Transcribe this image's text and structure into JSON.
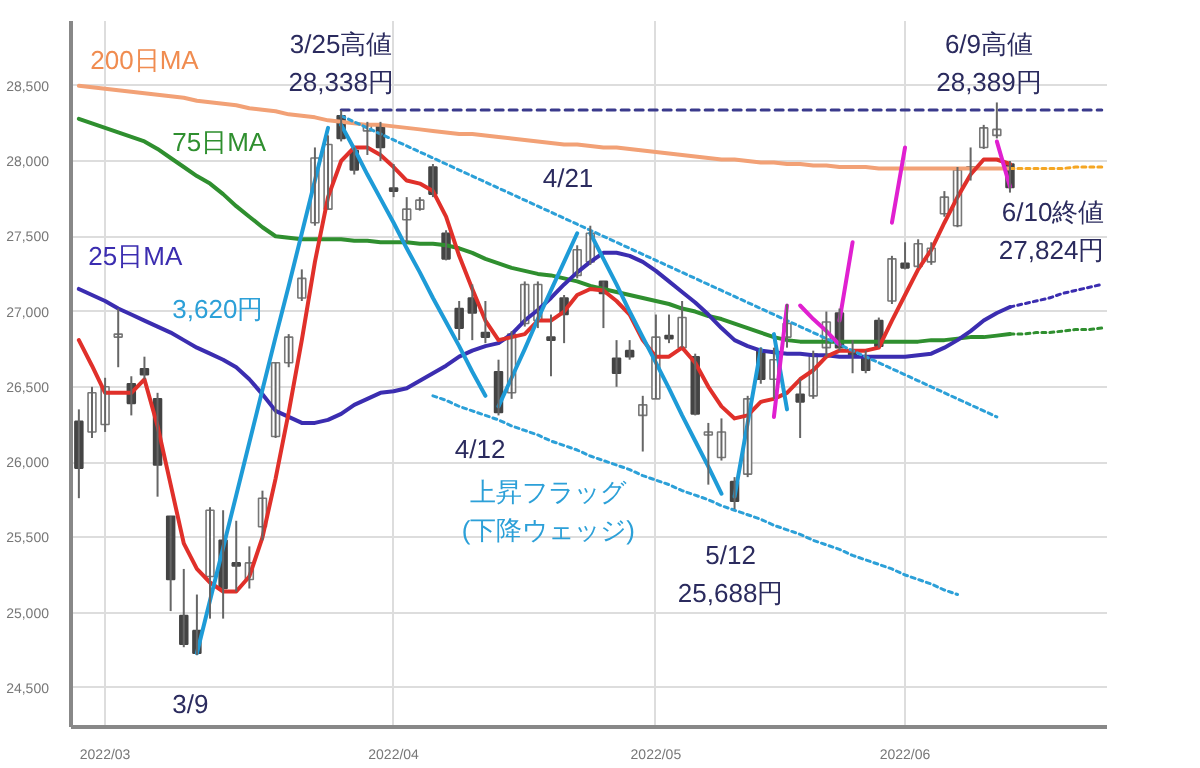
{
  "chart_data": {
    "type": "candlestick",
    "categories": [
      null,
      null,
      "2022/03",
      null,
      null,
      null,
      null,
      null,
      null,
      null,
      null,
      null,
      null,
      null,
      null,
      null,
      null,
      null,
      null,
      null,
      null,
      null,
      null,
      null,
      "2022/04",
      null,
      null,
      null,
      null,
      null,
      null,
      null,
      null,
      null,
      null,
      null,
      null,
      null,
      null,
      null,
      null,
      null,
      null,
      null,
      "2022/05",
      null,
      null,
      null,
      null,
      null,
      null,
      null,
      null,
      null,
      null,
      null,
      null,
      null,
      null,
      null,
      null,
      null,
      null,
      "2022/06",
      null,
      null,
      null,
      null,
      null,
      null,
      null,
      null,
      null,
      null,
      null,
      null,
      null,
      null,
      null
    ],
    "ohlc": [
      [
        26270,
        26350,
        25760,
        25960
      ],
      [
        26200,
        26500,
        26160,
        26460
      ],
      [
        26250,
        26560,
        26200,
        26500
      ],
      [
        26830,
        27020,
        26630,
        26850
      ],
      [
        26520,
        26570,
        26310,
        26390
      ],
      [
        26620,
        26700,
        26550,
        26580
      ],
      [
        26420,
        26460,
        25770,
        25980
      ],
      [
        25640,
        25640,
        25010,
        25220
      ],
      [
        24980,
        25290,
        24770,
        24790
      ],
      [
        24880,
        25120,
        24718,
        24730
      ],
      [
        25240,
        25700,
        24960,
        25680
      ],
      [
        25480,
        25680,
        24960,
        25160
      ],
      [
        25330,
        25610,
        25140,
        25310
      ],
      [
        25220,
        25440,
        25160,
        25330
      ],
      [
        25570,
        25810,
        25480,
        25760
      ],
      [
        26170,
        26660,
        26160,
        26660
      ],
      [
        26660,
        26850,
        26630,
        26830
      ],
      [
        27090,
        27280,
        27070,
        27220
      ],
      [
        27590,
        28090,
        27570,
        28020
      ],
      [
        27680,
        28170,
        27680,
        28110
      ],
      [
        28300,
        28338,
        28130,
        28150
      ],
      [
        28070,
        28090,
        27910,
        27940
      ],
      [
        28200,
        28260,
        28040,
        28240
      ],
      [
        28240,
        28260,
        28000,
        28090
      ],
      [
        27820,
        27980,
        27760,
        27800
      ],
      [
        27610,
        27760,
        27460,
        27680
      ],
      [
        27680,
        27760,
        27670,
        27740
      ],
      [
        27960,
        27980,
        27760,
        27780
      ],
      [
        27520,
        27540,
        27340,
        27350
      ],
      [
        27020,
        27070,
        26810,
        26890
      ],
      [
        27090,
        27180,
        26810,
        26990
      ],
      [
        26860,
        27070,
        26790,
        26830
      ],
      [
        26600,
        26680,
        26310,
        26330
      ],
      [
        26460,
        26870,
        26420,
        26850
      ],
      [
        26920,
        27200,
        26900,
        27180
      ],
      [
        26940,
        27200,
        26890,
        27180
      ],
      [
        26830,
        26980,
        26570,
        26810
      ],
      [
        27090,
        27110,
        26790,
        26980
      ],
      [
        27240,
        27440,
        27220,
        27410
      ],
      [
        27330,
        27570,
        27310,
        27520
      ],
      [
        27200,
        27200,
        26890,
        27120
      ],
      [
        26690,
        26810,
        26500,
        26590
      ],
      [
        26740,
        26810,
        26680,
        26700
      ],
      [
        26310,
        26440,
        26070,
        26380
      ],
      [
        26420,
        26980,
        26420,
        26830
      ],
      [
        26840,
        26980,
        26790,
        26820
      ],
      [
        26760,
        27070,
        26760,
        26960
      ],
      [
        26700,
        26720,
        26310,
        26320
      ],
      [
        26180,
        26260,
        25850,
        26200
      ],
      [
        26030,
        26290,
        26010,
        26200
      ],
      [
        25870,
        25900,
        25688,
        25740
      ],
      [
        25920,
        26440,
        25900,
        26420
      ],
      [
        26740,
        26760,
        26520,
        26550
      ],
      [
        26550,
        26760,
        26420,
        26680
      ],
      [
        26830,
        27050,
        26760,
        26920
      ],
      [
        26450,
        26550,
        26160,
        26400
      ],
      [
        26440,
        26740,
        26420,
        26720
      ],
      [
        26760,
        27000,
        26700,
        26930
      ],
      [
        26990,
        27020,
        26740,
        26760
      ],
      [
        26730,
        26810,
        26590,
        26700
      ],
      [
        26690,
        26740,
        26590,
        26610
      ],
      [
        26940,
        26960,
        26760,
        26770
      ],
      [
        27070,
        27370,
        27050,
        27350
      ],
      [
        27320,
        27460,
        27280,
        27290
      ],
      [
        27300,
        27480,
        27290,
        27450
      ],
      [
        27330,
        27460,
        27310,
        27420
      ],
      [
        27650,
        27800,
        27630,
        27760
      ],
      [
        27570,
        27960,
        27560,
        27940
      ],
      [
        27960,
        28090,
        27870,
        27950
      ],
      [
        28090,
        28240,
        28080,
        28220
      ],
      [
        28170,
        28389,
        28150,
        28210
      ],
      [
        27980,
        28000,
        27790,
        27824
      ],
      null,
      null,
      null,
      null,
      null,
      null,
      null
    ],
    "ylim": [
      24240,
      28930
    ],
    "yticks": [
      {
        "value": 24500,
        "label": "24,500"
      },
      {
        "value": 25000,
        "label": "25,000"
      },
      {
        "value": 25500,
        "label": "25,500"
      },
      {
        "value": 26000,
        "label": "26,000"
      },
      {
        "value": 26500,
        "label": "26,500"
      },
      {
        "value": 27000,
        "label": "27,000"
      },
      {
        "value": 27500,
        "label": "27,500"
      },
      {
        "value": 28000,
        "label": "28,000"
      },
      {
        "value": 28500,
        "label": "28,500"
      }
    ],
    "grid": true,
    "series": [
      {
        "type": "line",
        "color": "#f2a176",
        "values": [
          28500,
          28490,
          28480,
          28470,
          28460,
          28450,
          28440,
          28430,
          28420,
          28400,
          28390,
          28380,
          28370,
          28350,
          28340,
          28330,
          28310,
          28300,
          28290,
          28270,
          28260,
          28250,
          28240,
          28240,
          28230,
          28220,
          28210,
          28200,
          28190,
          28180,
          28180,
          28170,
          28160,
          28150,
          28140,
          28130,
          28120,
          28110,
          28110,
          28100,
          28090,
          28090,
          28080,
          28070,
          28060,
          28050,
          28040,
          28030,
          28020,
          28010,
          28010,
          28000,
          27990,
          27990,
          27980,
          27980,
          27970,
          27970,
          27960,
          27960,
          27960,
          27950,
          27950,
          27950,
          27950,
          27950,
          27950,
          27950,
          27950,
          27950,
          27950,
          27950,
          null,
          null,
          null,
          null,
          null,
          null,
          null
        ]
      },
      {
        "type": "line",
        "color": "#2f8f2f",
        "values": [
          28280,
          28250,
          28220,
          28190,
          28160,
          28130,
          28080,
          28020,
          27960,
          27900,
          27850,
          27780,
          27700,
          27630,
          27560,
          27500,
          27490,
          27480,
          27480,
          27480,
          27480,
          27470,
          27470,
          27460,
          27460,
          27460,
          27450,
          27450,
          27440,
          27420,
          27390,
          27350,
          27320,
          27290,
          27270,
          27250,
          27240,
          27220,
          27200,
          27170,
          27150,
          27130,
          27110,
          27090,
          27070,
          27050,
          27020,
          27000,
          26970,
          26950,
          26920,
          26890,
          26860,
          26830,
          26810,
          26800,
          26800,
          26800,
          26800,
          26800,
          26800,
          26800,
          26800,
          26800,
          26800,
          26810,
          26810,
          26820,
          26830,
          26830,
          26840,
          26850,
          null,
          null,
          null,
          null,
          null,
          null,
          null
        ]
      },
      {
        "type": "line",
        "color": "#3b2db0",
        "values": [
          27150,
          27110,
          27070,
          27020,
          26980,
          26940,
          26900,
          26860,
          26810,
          26760,
          26720,
          26680,
          26630,
          26550,
          26450,
          26340,
          26300,
          26260,
          26260,
          26280,
          26320,
          26380,
          26420,
          26460,
          26470,
          26490,
          26540,
          26590,
          26640,
          26700,
          26740,
          26770,
          26790,
          26850,
          26940,
          27010,
          27090,
          27180,
          27260,
          27330,
          27390,
          27390,
          27370,
          27330,
          27270,
          27200,
          27130,
          27060,
          26980,
          26890,
          26810,
          26770,
          26740,
          26730,
          26720,
          26720,
          26710,
          26710,
          26700,
          26700,
          26700,
          26700,
          26700,
          26700,
          26710,
          26720,
          26760,
          26810,
          26870,
          26940,
          26990,
          27030,
          null,
          null,
          null,
          null,
          null,
          null,
          null
        ]
      },
      {
        "type": "line",
        "color": "#e0302a",
        "values": [
          26810,
          26640,
          26460,
          26460,
          26460,
          26550,
          26240,
          25850,
          25460,
          25290,
          25200,
          25140,
          25140,
          25240,
          25500,
          25890,
          26330,
          26810,
          27330,
          27760,
          28000,
          28090,
          28090,
          28040,
          27960,
          27870,
          27850,
          27800,
          27630,
          27370,
          27150,
          26940,
          26810,
          26830,
          26850,
          26940,
          26940,
          27000,
          27110,
          27150,
          27140,
          27070,
          26980,
          26810,
          26700,
          26700,
          26760,
          26660,
          26500,
          26370,
          26290,
          26310,
          26400,
          26420,
          26460,
          26550,
          26610,
          26700,
          26740,
          26740,
          26740,
          26760,
          26940,
          27110,
          27280,
          27410,
          27590,
          27760,
          27910,
          28010,
          28010,
          27980,
          null,
          null,
          null,
          null,
          null,
          null,
          null
        ]
      },
      {
        "type": "line",
        "color": "#f5a623",
        "line_style": "dotted",
        "values": [
          null,
          null,
          null,
          null,
          null,
          null,
          null,
          null,
          null,
          null,
          null,
          null,
          null,
          null,
          null,
          null,
          null,
          null,
          null,
          null,
          null,
          null,
          null,
          null,
          null,
          null,
          null,
          null,
          null,
          null,
          null,
          null,
          null,
          null,
          null,
          null,
          null,
          null,
          null,
          null,
          null,
          null,
          null,
          null,
          null,
          null,
          null,
          null,
          null,
          null,
          null,
          null,
          null,
          null,
          null,
          null,
          null,
          null,
          null,
          null,
          null,
          null,
          null,
          null,
          null,
          null,
          null,
          null,
          null,
          null,
          null,
          27950,
          27950,
          27950,
          27950,
          27950,
          27960,
          27960,
          27960
        ]
      },
      {
        "type": "line",
        "color": "#3b2db0",
        "line_style": "dotted",
        "values": [
          null,
          null,
          null,
          null,
          null,
          null,
          null,
          null,
          null,
          null,
          null,
          null,
          null,
          null,
          null,
          null,
          null,
          null,
          null,
          null,
          null,
          null,
          null,
          null,
          null,
          null,
          null,
          null,
          null,
          null,
          null,
          null,
          null,
          null,
          null,
          null,
          null,
          null,
          null,
          null,
          null,
          null,
          null,
          null,
          null,
          null,
          null,
          null,
          null,
          null,
          null,
          null,
          null,
          null,
          null,
          null,
          null,
          null,
          null,
          null,
          null,
          null,
          null,
          null,
          null,
          null,
          null,
          null,
          null,
          null,
          null,
          27030,
          27050,
          27070,
          27090,
          27120,
          27140,
          27160,
          27180
        ]
      },
      {
        "type": "line",
        "color": "#2f8f2f",
        "line_style": "dotted",
        "values": [
          null,
          null,
          null,
          null,
          null,
          null,
          null,
          null,
          null,
          null,
          null,
          null,
          null,
          null,
          null,
          null,
          null,
          null,
          null,
          null,
          null,
          null,
          null,
          null,
          null,
          null,
          null,
          null,
          null,
          null,
          null,
          null,
          null,
          null,
          null,
          null,
          null,
          null,
          null,
          null,
          null,
          null,
          null,
          null,
          null,
          null,
          null,
          null,
          null,
          null,
          null,
          null,
          null,
          null,
          null,
          null,
          null,
          null,
          null,
          null,
          null,
          null,
          null,
          null,
          null,
          null,
          null,
          null,
          null,
          null,
          null,
          26850,
          26850,
          26860,
          26860,
          26870,
          26880,
          26880,
          26890
        ]
      },
      {
        "type": "line",
        "color": "#3a3a8c",
        "line_style": "dashed",
        "values": [
          null,
          null,
          null,
          null,
          null,
          null,
          null,
          null,
          null,
          null,
          null,
          null,
          null,
          null,
          null,
          null,
          null,
          null,
          null,
          null,
          28338,
          28338,
          28338,
          28338,
          28338,
          28338,
          28338,
          28338,
          28338,
          28338,
          28338,
          28338,
          28338,
          28338,
          28338,
          28338,
          28338,
          28338,
          28338,
          28338,
          28338,
          28338,
          28338,
          28338,
          28338,
          28338,
          28338,
          28338,
          28338,
          28338,
          28338,
          28338,
          28338,
          28338,
          28338,
          28338,
          28338,
          28338,
          28338,
          28338,
          28338,
          28338,
          28338,
          28338,
          28338,
          28338,
          28338,
          28338,
          28338,
          28338,
          28338,
          28338,
          28338,
          28338,
          28338,
          28338,
          28338,
          28338,
          28338
        ]
      },
      {
        "type": "line",
        "color": "#2ca0d8",
        "line_style": "dotted",
        "values": [
          null,
          null,
          null,
          null,
          null,
          null,
          null,
          null,
          null,
          null,
          null,
          null,
          null,
          null,
          null,
          null,
          null,
          null,
          null,
          null,
          28300,
          28260,
          28220,
          28180,
          28140,
          28100,
          28060,
          28020,
          27980,
          27940,
          27900,
          27860,
          27820,
          27780,
          27740,
          27700,
          27660,
          27620,
          27580,
          27540,
          27500,
          27460,
          27420,
          27380,
          27340,
          27300,
          27260,
          27220,
          27180,
          27140,
          27100,
          27060,
          27020,
          26980,
          26940,
          26900,
          26860,
          26820,
          26780,
          26740,
          26700,
          26660,
          26620,
          26580,
          26540,
          26500,
          26460,
          26420,
          26380,
          26340,
          26300,
          null,
          null,
          null,
          null,
          null,
          null,
          null,
          null
        ]
      },
      {
        "type": "line",
        "color": "#2ca0d8",
        "line_style": "dotted",
        "values": [
          null,
          null,
          null,
          null,
          null,
          null,
          null,
          null,
          null,
          null,
          null,
          null,
          null,
          null,
          null,
          null,
          null,
          null,
          null,
          null,
          null,
          null,
          null,
          null,
          null,
          null,
          null,
          26440,
          26410,
          26370,
          26340,
          26310,
          26280,
          26240,
          26210,
          26180,
          26140,
          26110,
          26080,
          26040,
          26010,
          25980,
          25950,
          25910,
          25880,
          25850,
          25810,
          25780,
          25750,
          25710,
          25680,
          25650,
          25620,
          25580,
          25550,
          25520,
          25480,
          25450,
          25420,
          25380,
          25350,
          25320,
          25290,
          25250,
          25220,
          25190,
          25150,
          25120,
          null,
          null,
          null,
          null,
          null,
          null,
          null,
          null,
          null,
          null,
          null
        ]
      },
      {
        "type": "line",
        "color": "#1e9bd7",
        "values": [
          null,
          null,
          null,
          null,
          null,
          null,
          null,
          null,
          null,
          24730,
          25080,
          25430,
          25780,
          26130,
          26480,
          26830,
          27170,
          27520,
          27870,
          28220,
          null,
          null,
          null,
          null,
          null,
          null,
          null,
          null,
          null,
          null,
          null,
          null,
          null,
          null,
          null,
          null,
          null,
          null,
          null,
          null,
          null,
          null,
          null,
          null,
          null,
          null,
          null,
          null,
          null,
          null,
          null,
          null,
          null,
          null,
          null,
          null,
          null,
          null,
          null,
          null,
          null,
          null,
          null,
          null,
          null,
          null,
          null,
          null,
          null,
          null,
          null,
          null,
          null,
          null,
          null,
          null,
          null,
          null,
          null
        ]
      },
      {
        "type": "line",
        "color": "#1e9bd7",
        "values": [
          null,
          null,
          null,
          null,
          null,
          null,
          null,
          null,
          null,
          null,
          null,
          null,
          null,
          null,
          null,
          null,
          null,
          null,
          null,
          null,
          28240,
          28080,
          27910,
          27750,
          27590,
          27420,
          27260,
          27090,
          26930,
          26770,
          26600,
          26440,
          null,
          null,
          null,
          null,
          null,
          null,
          null,
          null,
          null,
          null,
          null,
          null,
          null,
          null,
          null,
          null,
          null,
          null,
          null,
          null,
          null,
          null,
          null,
          null,
          null,
          null,
          null,
          null,
          null,
          null,
          null,
          null,
          null,
          null,
          null,
          null,
          null,
          null,
          null,
          null,
          null,
          null,
          null,
          null,
          null,
          null,
          null
        ]
      },
      {
        "type": "line",
        "color": "#1e9bd7",
        "values": [
          null,
          null,
          null,
          null,
          null,
          null,
          null,
          null,
          null,
          null,
          null,
          null,
          null,
          null,
          null,
          null,
          null,
          null,
          null,
          null,
          null,
          null,
          null,
          null,
          null,
          null,
          null,
          null,
          null,
          null,
          null,
          null,
          26370,
          26560,
          26750,
          26950,
          27140,
          27330,
          27520,
          null,
          null,
          null,
          null,
          null,
          null,
          null,
          null,
          null,
          null,
          null,
          null,
          null,
          null,
          null,
          null,
          null,
          null,
          null,
          null,
          null,
          null,
          null,
          null,
          null,
          null,
          null,
          null,
          null,
          null,
          null,
          null,
          null,
          null,
          null,
          null,
          null,
          null,
          null,
          null
        ]
      },
      {
        "type": "line",
        "color": "#1e9bd7",
        "values": [
          null,
          null,
          null,
          null,
          null,
          null,
          null,
          null,
          null,
          null,
          null,
          null,
          null,
          null,
          null,
          null,
          null,
          null,
          null,
          null,
          null,
          null,
          null,
          null,
          null,
          null,
          null,
          null,
          null,
          null,
          null,
          null,
          null,
          null,
          null,
          null,
          null,
          null,
          null,
          27520,
          27350,
          27180,
          27000,
          26830,
          26660,
          26490,
          26310,
          26140,
          25970,
          25790,
          null,
          null,
          null,
          null,
          null,
          null,
          null,
          null,
          null,
          null,
          null,
          null,
          null,
          null,
          null,
          null,
          null,
          null,
          null,
          null,
          null,
          null,
          null,
          null,
          null,
          null,
          null,
          null,
          null
        ]
      },
      {
        "type": "line",
        "color": "#1e9bd7",
        "values": [
          null,
          null,
          null,
          null,
          null,
          null,
          null,
          null,
          null,
          null,
          null,
          null,
          null,
          null,
          null,
          null,
          null,
          null,
          null,
          null,
          null,
          null,
          null,
          null,
          null,
          null,
          null,
          null,
          null,
          null,
          null,
          null,
          null,
          null,
          null,
          null,
          null,
          null,
          null,
          null,
          null,
          null,
          null,
          null,
          null,
          null,
          null,
          null,
          null,
          null,
          25770,
          26260,
          26750,
          null,
          null,
          null,
          null,
          null,
          null,
          null,
          null,
          null,
          null,
          null,
          null,
          null,
          null,
          null,
          null,
          null,
          null,
          null,
          null,
          null,
          null,
          null,
          null,
          null,
          null
        ]
      },
      {
        "type": "line",
        "color": "#1e9bd7",
        "values": [
          null,
          null,
          null,
          null,
          null,
          null,
          null,
          null,
          null,
          null,
          null,
          null,
          null,
          null,
          null,
          null,
          null,
          null,
          null,
          null,
          null,
          null,
          null,
          null,
          null,
          null,
          null,
          null,
          null,
          null,
          null,
          null,
          null,
          null,
          null,
          null,
          null,
          null,
          null,
          null,
          null,
          null,
          null,
          null,
          null,
          null,
          null,
          null,
          null,
          null,
          null,
          null,
          null,
          26850,
          26350,
          null,
          null,
          null,
          null,
          null,
          null,
          null,
          null,
          null,
          null,
          null,
          null,
          null,
          null,
          null,
          null,
          null,
          null,
          null,
          null,
          null,
          null,
          null,
          null
        ]
      },
      {
        "type": "line",
        "color": "#e020d0",
        "values": [
          null,
          null,
          null,
          null,
          null,
          null,
          null,
          null,
          null,
          null,
          null,
          null,
          null,
          null,
          null,
          null,
          null,
          null,
          null,
          null,
          null,
          null,
          null,
          null,
          null,
          null,
          null,
          null,
          null,
          null,
          null,
          null,
          null,
          null,
          null,
          null,
          null,
          null,
          null,
          null,
          null,
          null,
          null,
          null,
          null,
          null,
          null,
          null,
          null,
          null,
          null,
          null,
          null,
          26300,
          27040,
          null,
          null,
          null,
          null,
          null,
          null,
          null,
          null,
          null,
          null,
          null,
          null,
          null,
          null,
          null,
          null,
          null,
          null,
          null,
          null,
          null,
          null,
          null,
          null
        ]
      },
      {
        "type": "line",
        "color": "#e020d0",
        "values": [
          null,
          null,
          null,
          null,
          null,
          null,
          null,
          null,
          null,
          null,
          null,
          null,
          null,
          null,
          null,
          null,
          null,
          null,
          null,
          null,
          null,
          null,
          null,
          null,
          null,
          null,
          null,
          null,
          null,
          null,
          null,
          null,
          null,
          null,
          null,
          null,
          null,
          null,
          null,
          null,
          null,
          null,
          null,
          null,
          null,
          null,
          null,
          null,
          null,
          null,
          null,
          null,
          null,
          null,
          null,
          27040,
          26950,
          26870,
          26780,
          null,
          null,
          null,
          null,
          null,
          null,
          null,
          null,
          null,
          null,
          null,
          null,
          null,
          null,
          null,
          null,
          null,
          null,
          null,
          null
        ]
      },
      {
        "type": "line",
        "color": "#e020d0",
        "values": [
          null,
          null,
          null,
          null,
          null,
          null,
          null,
          null,
          null,
          null,
          null,
          null,
          null,
          null,
          null,
          null,
          null,
          null,
          null,
          null,
          null,
          null,
          null,
          null,
          null,
          null,
          null,
          null,
          null,
          null,
          null,
          null,
          null,
          null,
          null,
          null,
          null,
          null,
          null,
          null,
          null,
          null,
          null,
          null,
          null,
          null,
          null,
          null,
          null,
          null,
          null,
          null,
          null,
          null,
          null,
          null,
          null,
          null,
          26940,
          27460,
          null,
          null,
          null,
          null,
          null,
          null,
          null,
          null,
          null,
          null,
          null,
          null,
          null,
          null,
          null,
          null,
          null,
          null,
          null
        ]
      },
      {
        "type": "line",
        "color": "#e020d0",
        "values": [
          null,
          null,
          null,
          null,
          null,
          null,
          null,
          null,
          null,
          null,
          null,
          null,
          null,
          null,
          null,
          null,
          null,
          null,
          null,
          null,
          null,
          null,
          null,
          null,
          null,
          null,
          null,
          null,
          null,
          null,
          null,
          null,
          null,
          null,
          null,
          null,
          null,
          null,
          null,
          null,
          null,
          null,
          null,
          null,
          null,
          null,
          null,
          null,
          null,
          null,
          null,
          null,
          null,
          null,
          null,
          null,
          null,
          null,
          null,
          null,
          null,
          null,
          27590,
          28090,
          null,
          null,
          null,
          null,
          null,
          null,
          null,
          null,
          null,
          null,
          null,
          null,
          null,
          null,
          null
        ]
      },
      {
        "type": "line",
        "color": "#e020d0",
        "values": [
          null,
          null,
          null,
          null,
          null,
          null,
          null,
          null,
          null,
          null,
          null,
          null,
          null,
          null,
          null,
          null,
          null,
          null,
          null,
          null,
          null,
          null,
          null,
          null,
          null,
          null,
          null,
          null,
          null,
          null,
          null,
          null,
          null,
          null,
          null,
          null,
          null,
          null,
          null,
          null,
          null,
          null,
          null,
          null,
          null,
          null,
          null,
          null,
          null,
          null,
          null,
          null,
          null,
          null,
          null,
          null,
          null,
          null,
          null,
          null,
          null,
          null,
          null,
          null,
          null,
          null,
          null,
          null,
          null,
          null,
          28130,
          27830,
          null,
          null,
          null,
          null,
          null,
          null,
          null
        ]
      }
    ],
    "annotations": [
      "200日MA",
      "75日MA",
      "25日MA",
      "3,620円",
      "3/25高値\n28,338円",
      "4/21",
      "4/12",
      "上昇フラッグ\n(下降ウェッジ)",
      "3/9",
      "5/12\n25,688円",
      "6/9高値\n28,389円",
      "6/10終値\n27,824円"
    ]
  }
}
